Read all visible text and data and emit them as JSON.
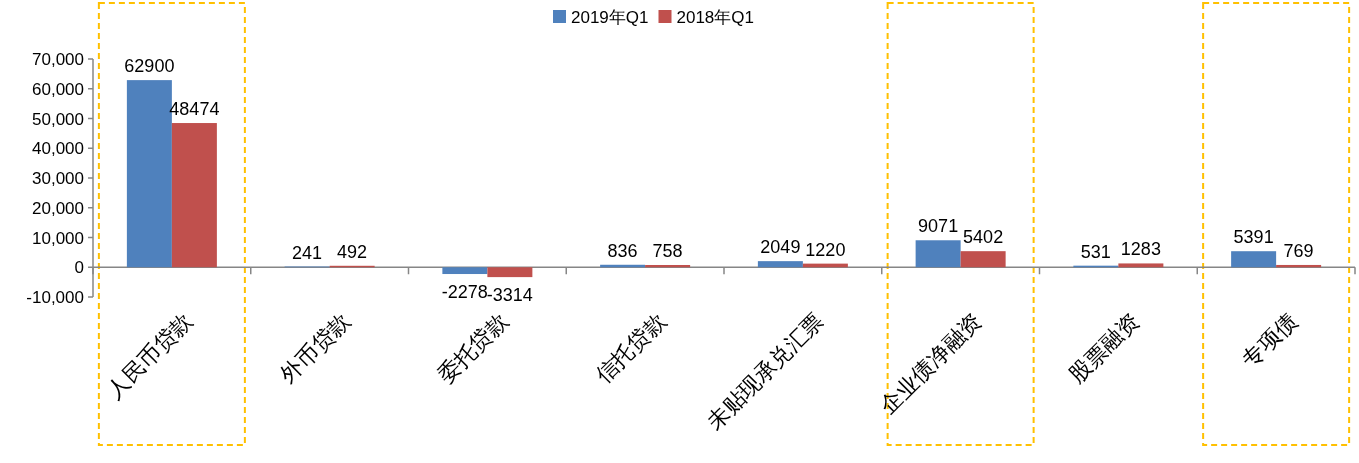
{
  "chart_data": {
    "type": "bar",
    "categories": [
      "人民币贷款",
      "外币贷款",
      "委托贷款",
      "信托贷款",
      "未贴现承兑汇票",
      "企业债净融资",
      "股票融资",
      "专项债"
    ],
    "series": [
      {
        "name": "2019年Q1",
        "color": "#4f81bd",
        "values": [
          62900,
          241,
          -2278,
          836,
          2049,
          9071,
          531,
          5391
        ]
      },
      {
        "name": "2018年Q1",
        "color": "#c0504d",
        "values": [
          48474,
          492,
          -3314,
          758,
          1220,
          5402,
          1283,
          769
        ]
      }
    ],
    "ylim": [
      -10000,
      70000
    ],
    "yticks": [
      {
        "value": -10000,
        "label": "-10,000"
      },
      0,
      {
        "value": 10000,
        "label": "10,000"
      },
      {
        "value": 20000,
        "label": "20,000"
      },
      {
        "value": 30000,
        "label": "30,000"
      },
      {
        "value": 40000,
        "label": "40,000"
      },
      {
        "value": 50000,
        "label": "50,000"
      },
      {
        "value": 60000,
        "label": "60,000"
      },
      {
        "value": 70000,
        "label": "70,000"
      }
    ],
    "data_labels": true,
    "legend": "top",
    "grid": false
  }
}
